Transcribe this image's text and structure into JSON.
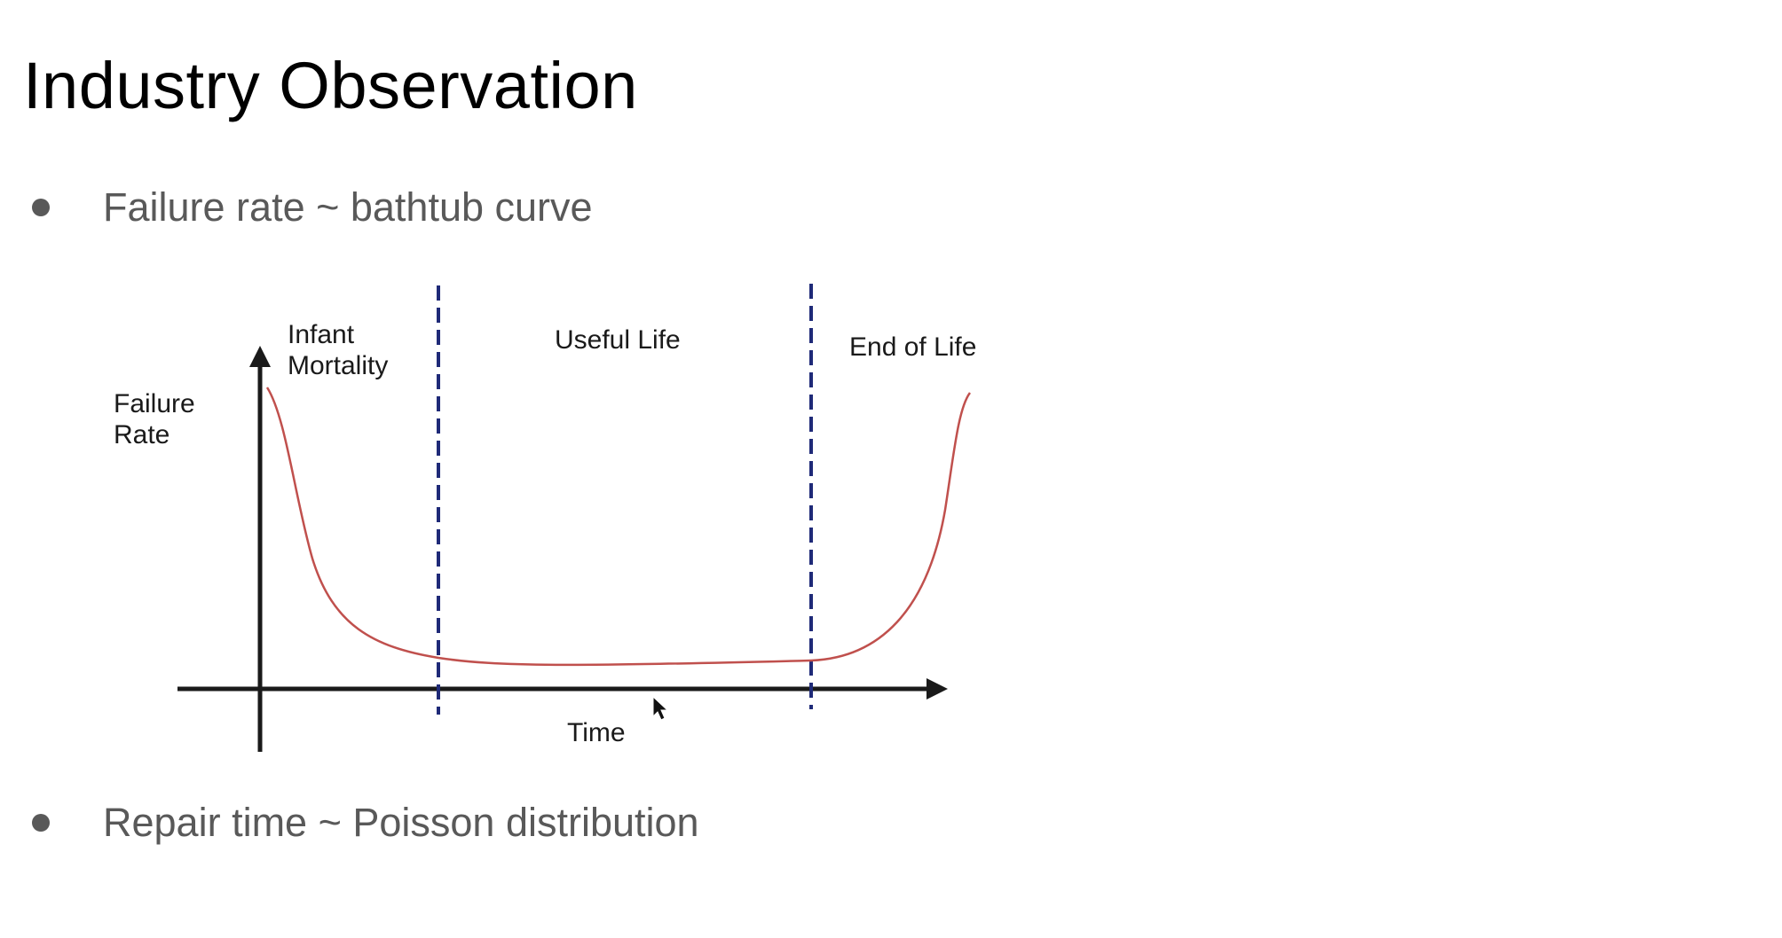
{
  "slide": {
    "title": "Industry Observation",
    "bullets": [
      "Failure rate ~ bathtub curve",
      "Repair time ~ Poisson distribution"
    ]
  },
  "diagram": {
    "y_axis_label_line1": "Failure",
    "y_axis_label_line2": "Rate",
    "x_axis_label": "Time",
    "regions": {
      "infant_line1": "Infant",
      "infant_line2": "Mortality",
      "useful": "Useful Life",
      "end": "End of Life"
    },
    "colors": {
      "curve": "#c0504d",
      "dividers": "#1f2a78",
      "axes": "#1a1a1a"
    }
  }
}
